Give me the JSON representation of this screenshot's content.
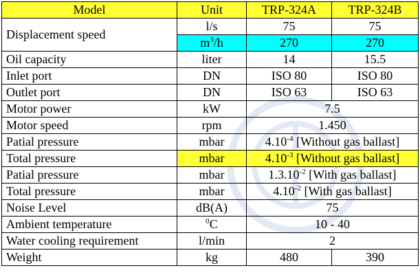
{
  "table": {
    "header": [
      "Model",
      "Unit",
      "TRP-324A",
      "TRP-324B"
    ],
    "rows": [
      {
        "label": "Displacement speed",
        "unit": "l/s",
        "values": [
          "75",
          "75"
        ]
      },
      {
        "unit": {
          "base": "m",
          "sup": "3",
          "rest": "/h"
        },
        "values": [
          "270",
          "270"
        ]
      },
      {
        "label": "Oil capacity",
        "unit": "liter",
        "values": [
          "14",
          "15.5"
        ]
      },
      {
        "label": "Inlet port",
        "unit": "DN",
        "values": [
          "ISO 80",
          "ISO 80"
        ]
      },
      {
        "label": "Outlet port",
        "unit": "DN",
        "values": [
          "ISO 63",
          "ISO 63"
        ]
      },
      {
        "label": "Motor power",
        "unit": "kW",
        "value": "7.5"
      },
      {
        "label": "Motor speed",
        "unit": "rpm",
        "value": "1.450"
      },
      {
        "label": "Patial pressure",
        "unit": "mbar",
        "value": {
          "base": "4.10",
          "sup": "-4",
          "rest": " [Without gas ballast]"
        }
      },
      {
        "label": "Total pressure",
        "unit": "mbar",
        "value": {
          "base": "4.10",
          "sup": "-3",
          "rest": " [Without gas ballast]"
        }
      },
      {
        "label": "Patial pressure",
        "unit": "mbar",
        "value": {
          "base": "1.3.10",
          "sup": "-2",
          "rest": " [With gas ballast]"
        }
      },
      {
        "label": "Total pressure",
        "unit": "mbar",
        "value": {
          "base": "4.10",
          "sup": "-2",
          "rest": " [With gas ballast]"
        }
      },
      {
        "label": "Noise Level",
        "unit": "dB(A)",
        "value": "75"
      },
      {
        "label": "Ambient temperature",
        "unit": {
          "sup": "0",
          "rest": "C"
        },
        "value": "10 - 40"
      },
      {
        "label": "Water cooling requirement",
        "unit": "l/min",
        "value": "2"
      },
      {
        "label": "Weight",
        "unit": "kg",
        "values": [
          "480",
          "390"
        ]
      }
    ]
  }
}
